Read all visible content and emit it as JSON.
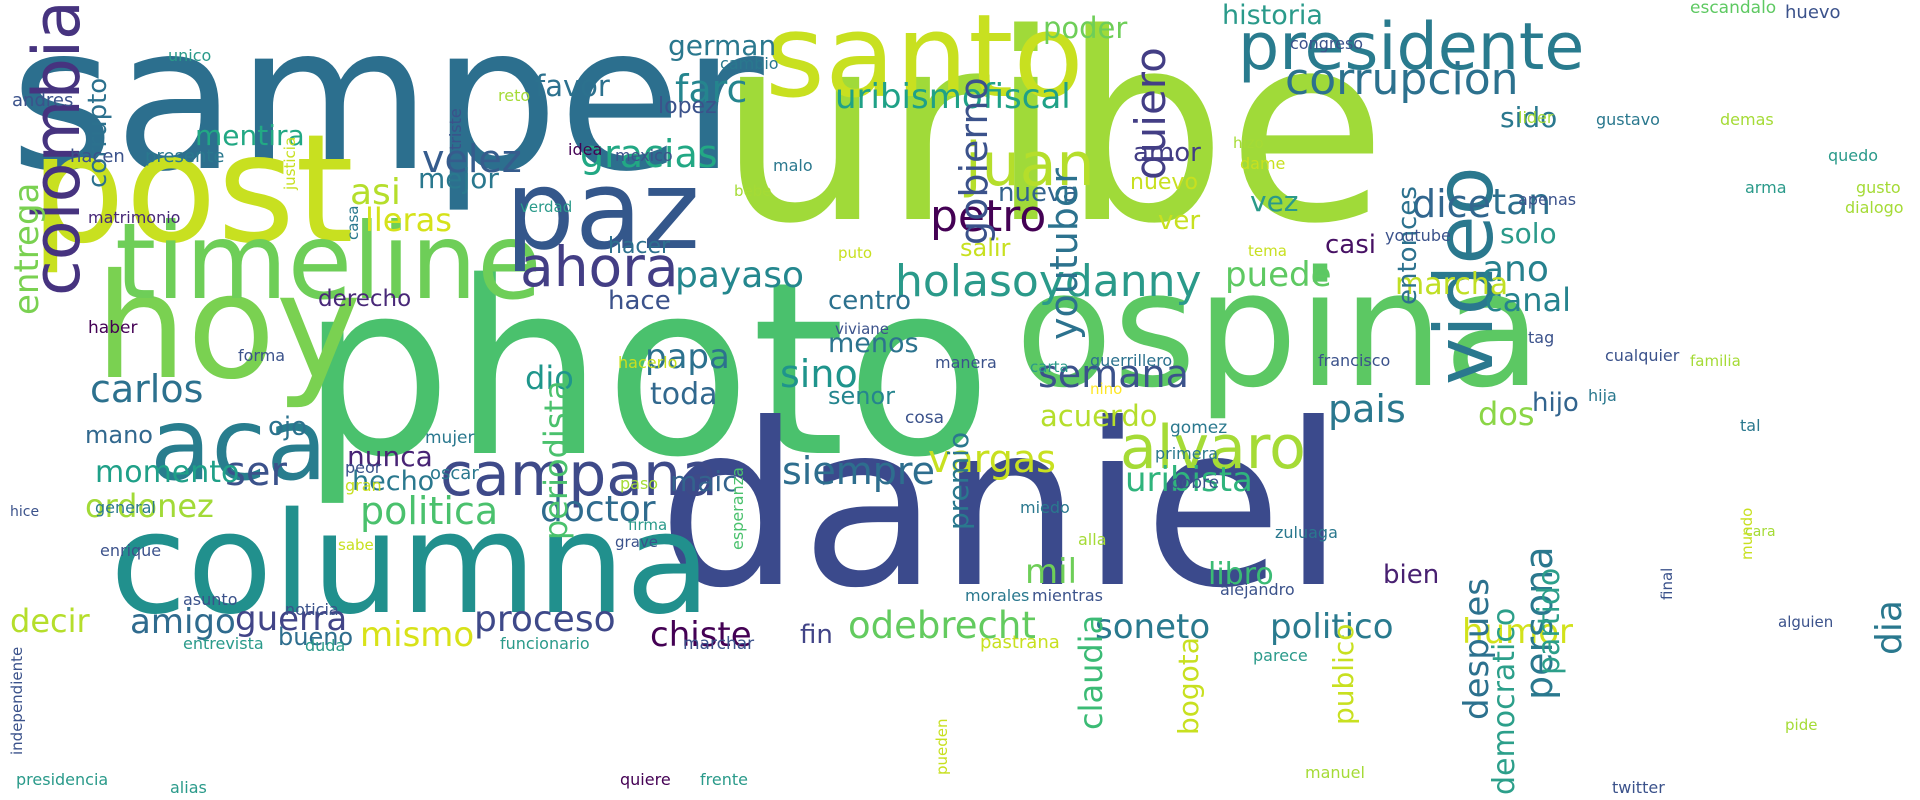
{
  "colors": {
    "background": "#ffffff",
    "palette": [
      "#440154",
      "#46327e",
      "#365c8d",
      "#277f8e",
      "#1fa187",
      "#4ac16d",
      "#a0da39",
      "#c8e020",
      "#fde725"
    ]
  },
  "words": [
    {
      "text": "uribe",
      "color": "#a0da39",
      "vertical": false
    },
    {
      "text": "photo",
      "color": "#4ac16d",
      "vertical": false
    },
    {
      "text": "samper",
      "color": "#2c6f8e",
      "vertical": false
    },
    {
      "text": "daniel",
      "color": "#3b4a8c",
      "vertical": false
    },
    {
      "text": "post",
      "color": "#c8e020",
      "vertical": false
    },
    {
      "text": "ospina",
      "color": "#5cc863",
      "vertical": false
    },
    {
      "text": "hoy",
      "color": "#7ad151",
      "vertical": false
    },
    {
      "text": "columna",
      "color": "#21908d",
      "vertical": false
    },
    {
      "text": "santo",
      "color": "#c8e020",
      "vertical": false
    },
    {
      "text": "timeline",
      "color": "#6ece58",
      "vertical": false
    },
    {
      "text": "paz",
      "color": "#34578b",
      "vertical": false
    },
    {
      "text": "presidente",
      "color": "#297b8e",
      "vertical": false
    },
    {
      "text": "aca",
      "color": "#287d8e",
      "vertical": false
    },
    {
      "text": "colombia",
      "color": "#46337f",
      "vertical": true
    },
    {
      "text": "video",
      "color": "#2a788e",
      "vertical": true
    },
    {
      "text": "campana",
      "color": "#3e4a89",
      "vertical": false
    },
    {
      "text": "alvaro",
      "color": "#a5db36",
      "vertical": false
    },
    {
      "text": "juan",
      "color": "#b5de2b",
      "vertical": false
    },
    {
      "text": "ahora",
      "color": "#433e85",
      "vertical": false
    },
    {
      "text": "holasoydanny",
      "color": "#2a9a8a",
      "vertical": false
    },
    {
      "text": "corrupcion",
      "color": "#2c718e",
      "vertical": false
    },
    {
      "text": "petro",
      "color": "#440154",
      "vertical": false
    },
    {
      "text": "uribismofiscal",
      "color": "#1fa187",
      "vertical": false
    },
    {
      "text": "carlos",
      "color": "#2c718e",
      "vertical": false
    },
    {
      "text": "gracias",
      "color": "#22a884",
      "vertical": false
    },
    {
      "text": "velez",
      "color": "#365c8d",
      "vertical": false
    },
    {
      "text": "farc",
      "color": "#25858e",
      "vertical": false
    },
    {
      "text": "siempre",
      "color": "#2e6e8e",
      "vertical": false
    },
    {
      "text": "vargas",
      "color": "#c8e020",
      "vertical": false
    },
    {
      "text": "semana",
      "color": "#3b528b",
      "vertical": false
    },
    {
      "text": "pais",
      "color": "#2a788e",
      "vertical": false
    },
    {
      "text": "dice",
      "color": "#31668e",
      "vertical": false
    },
    {
      "text": "tan",
      "color": "#2d708e",
      "vertical": false
    },
    {
      "text": "uribista",
      "color": "#2fb47c",
      "vertical": false
    },
    {
      "text": "politica",
      "color": "#4ac16d",
      "vertical": false
    },
    {
      "text": "doctor",
      "color": "#2f6b8e",
      "vertical": false
    },
    {
      "text": "ser",
      "color": "#3b528b",
      "vertical": false
    },
    {
      "text": "dio",
      "color": "#1f968b",
      "vertical": false
    },
    {
      "text": "sino",
      "color": "#1f948c",
      "vertical": false
    },
    {
      "text": "papa",
      "color": "#2c718e",
      "vertical": false
    },
    {
      "text": "payaso",
      "color": "#24878e",
      "vertical": false
    },
    {
      "text": "puede",
      "color": "#5ec962",
      "vertical": false
    },
    {
      "text": "ano",
      "color": "#26818e",
      "vertical": false
    },
    {
      "text": "canal",
      "color": "#25838e",
      "vertical": false
    },
    {
      "text": "odebrecht",
      "color": "#63cb5f",
      "vertical": false
    },
    {
      "text": "soneto",
      "color": "#29798e",
      "vertical": false
    },
    {
      "text": "politico",
      "color": "#297a8e",
      "vertical": false
    },
    {
      "text": "humor",
      "color": "#d2e21b",
      "vertical": false
    },
    {
      "text": "chiste",
      "color": "#440154",
      "vertical": false
    },
    {
      "text": "proceso",
      "color": "#3e4989",
      "vertical": false
    },
    {
      "text": "mismo",
      "color": "#d8e219",
      "vertical": false
    },
    {
      "text": "guerra",
      "color": "#414487",
      "vertical": false
    },
    {
      "text": "amigo",
      "color": "#2f6b8e",
      "vertical": false
    },
    {
      "text": "decir",
      "color": "#b5de2b",
      "vertical": false
    },
    {
      "text": "ordonez",
      "color": "#a2da37",
      "vertical": false
    },
    {
      "text": "momento",
      "color": "#1fa088",
      "vertical": false
    },
    {
      "text": "mano",
      "color": "#31688e",
      "vertical": false
    },
    {
      "text": "ojo",
      "color": "#2c728e",
      "vertical": false
    },
    {
      "text": "acuerdo",
      "color": "#b5de2b",
      "vertical": false
    },
    {
      "text": "dos",
      "color": "#8bd646",
      "vertical": false
    },
    {
      "text": "hijo",
      "color": "#32648e",
      "vertical": false
    },
    {
      "text": "mil",
      "color": "#6ece58",
      "vertical": false
    },
    {
      "text": "libro",
      "color": "#3bbb75",
      "vertical": false
    },
    {
      "text": "bien",
      "color": "#482071",
      "vertical": false
    },
    {
      "text": "nunca",
      "color": "#482475",
      "vertical": false
    },
    {
      "text": "hecho",
      "color": "#2a788e",
      "vertical": false
    },
    {
      "text": "maic",
      "color": "#33638d",
      "vertical": false
    },
    {
      "text": "fin",
      "color": "#414487",
      "vertical": false
    },
    {
      "text": "bueno",
      "color": "#2e6e8e",
      "vertical": false
    },
    {
      "text": "toda",
      "color": "#31688e",
      "vertical": false
    },
    {
      "text": "menos",
      "color": "#2c738e",
      "vertical": false
    },
    {
      "text": "senor",
      "color": "#25858e",
      "vertical": false
    },
    {
      "text": "centro",
      "color": "#2c718e",
      "vertical": false
    },
    {
      "text": "hace",
      "color": "#3b528b",
      "vertical": false
    },
    {
      "text": "derecho",
      "color": "#482878",
      "vertical": false
    },
    {
      "text": "asi",
      "color": "#b5de2b",
      "vertical": false
    },
    {
      "text": "lleras",
      "color": "#d5e21a",
      "vertical": false
    },
    {
      "text": "mejor",
      "color": "#2a788e",
      "vertical": false
    },
    {
      "text": "mentira",
      "color": "#22a884",
      "vertical": false
    },
    {
      "text": "favor",
      "color": "#2c718e",
      "vertical": false
    },
    {
      "text": "german",
      "color": "#2a788e",
      "vertical": false
    },
    {
      "text": "poder",
      "color": "#6ece58",
      "vertical": false
    },
    {
      "text": "historia",
      "color": "#2a9a8a",
      "vertical": false
    },
    {
      "text": "nueva",
      "color": "#33638d",
      "vertical": false
    },
    {
      "text": "amor",
      "color": "#433e85",
      "vertical": false
    },
    {
      "text": "nuevo",
      "color": "#c8e020",
      "vertical": false
    },
    {
      "text": "ver",
      "color": "#c8e020",
      "vertical": false
    },
    {
      "text": "casi",
      "color": "#471164",
      "vertical": false
    },
    {
      "text": "marcha",
      "color": "#c0df25",
      "vertical": false
    },
    {
      "text": "vez",
      "color": "#2a9a8a",
      "vertical": false
    },
    {
      "text": "sido",
      "color": "#2a788e",
      "vertical": false
    },
    {
      "text": "solo",
      "color": "#2a9a8a",
      "vertical": false
    },
    {
      "text": "salir",
      "color": "#c8e020",
      "vertical": false
    },
    {
      "text": "hacer",
      "color": "#2d708e",
      "vertical": false
    },
    {
      "text": "lopez",
      "color": "#3b528b",
      "vertical": false
    },
    {
      "text": "quiero",
      "color": "#433e85",
      "vertical": true
    },
    {
      "text": "gobierno",
      "color": "#3b528b",
      "vertical": true
    },
    {
      "text": "youtuber",
      "color": "#2c728e",
      "vertical": true
    },
    {
      "text": "periodista",
      "color": "#4ac16d",
      "vertical": true
    },
    {
      "text": "premio",
      "color": "#2a788e",
      "vertical": true
    },
    {
      "text": "entrega",
      "color": "#7ad151",
      "vertical": true
    },
    {
      "text": "corrupto",
      "color": "#2c718e",
      "vertical": true
    },
    {
      "text": "claudia",
      "color": "#3bbb75",
      "vertical": true
    },
    {
      "text": "bogota",
      "color": "#c8e020",
      "vertical": true
    },
    {
      "text": "publico",
      "color": "#c8e020",
      "vertical": true
    },
    {
      "text": "despues",
      "color": "#2c718e",
      "vertical": true
    },
    {
      "text": "persona",
      "color": "#2a788e",
      "vertical": true
    },
    {
      "text": "partido",
      "color": "#2c9f8a",
      "vertical": true
    },
    {
      "text": "entonces",
      "color": "#2c718e",
      "vertical": true
    },
    {
      "text": "dia",
      "color": "#2a788e",
      "vertical": true
    },
    {
      "text": "democratico",
      "color": "#2c9f8a",
      "vertical": true
    },
    {
      "text": "unico",
      "color": "#2a9a8a",
      "vertical": false
    },
    {
      "text": "cambio",
      "color": "#2a788e",
      "vertical": false
    },
    {
      "text": "reto",
      "color": "#a5db36",
      "vertical": false
    },
    {
      "text": "andres",
      "color": "#3b528b",
      "vertical": false
    },
    {
      "text": "hacen",
      "color": "#3b528b",
      "vertical": false
    },
    {
      "text": "presente",
      "color": "#2a788e",
      "vertical": false
    },
    {
      "text": "idea",
      "color": "#440154",
      "vertical": false
    },
    {
      "text": "mexico",
      "color": "#3b528b",
      "vertical": false
    },
    {
      "text": "congreso",
      "color": "#3b528b",
      "vertical": false
    },
    {
      "text": "escandalo",
      "color": "#5ec962",
      "vertical": false
    },
    {
      "text": "huevo",
      "color": "#3b528b",
      "vertical": false
    },
    {
      "text": "gustavo",
      "color": "#2a788e",
      "vertical": false
    },
    {
      "text": "demas",
      "color": "#a5db36",
      "vertical": false
    },
    {
      "text": "lider",
      "color": "#a5db36",
      "vertical": false
    },
    {
      "text": "quedo",
      "color": "#2a9a8a",
      "vertical": false
    },
    {
      "text": "hizo",
      "color": "#a5db36",
      "vertical": false
    },
    {
      "text": "dame",
      "color": "#c8e020",
      "vertical": false
    },
    {
      "text": "gusto",
      "color": "#a5db36",
      "vertical": false
    },
    {
      "text": "dialogo",
      "color": "#a5db36",
      "vertical": false
    },
    {
      "text": "arma",
      "color": "#2a9a8a",
      "vertical": false
    },
    {
      "text": "apenas",
      "color": "#3b528b",
      "vertical": false
    },
    {
      "text": "bebe",
      "color": "#a5db36",
      "vertical": false
    },
    {
      "text": "malo",
      "color": "#2a788e",
      "vertical": false
    },
    {
      "text": "verdad",
      "color": "#2a9a8a",
      "vertical": false
    },
    {
      "text": "matrimonio",
      "color": "#482878",
      "vertical": false
    },
    {
      "text": "puto",
      "color": "#c8e020",
      "vertical": false
    },
    {
      "text": "tema",
      "color": "#c8e020",
      "vertical": false
    },
    {
      "text": "youtube",
      "color": "#3b528b",
      "vertical": false
    },
    {
      "text": "haber",
      "color": "#440154",
      "vertical": false
    },
    {
      "text": "viviane",
      "color": "#3b528b",
      "vertical": false
    },
    {
      "text": "forma",
      "color": "#3b528b",
      "vertical": false
    },
    {
      "text": "carta",
      "color": "#2a9a8a",
      "vertical": false
    },
    {
      "text": "tag",
      "color": "#3b528b",
      "vertical": false
    },
    {
      "text": "cualquier",
      "color": "#3b528b",
      "vertical": false
    },
    {
      "text": "familia",
      "color": "#a5db36",
      "vertical": false
    },
    {
      "text": "guerrillero",
      "color": "#2c718e",
      "vertical": false
    },
    {
      "text": "francisco",
      "color": "#3b528b",
      "vertical": false
    },
    {
      "text": "hacerlo",
      "color": "#c8e020",
      "vertical": false
    },
    {
      "text": "manera",
      "color": "#3b528b",
      "vertical": false
    },
    {
      "text": "nino",
      "color": "#fde725",
      "vertical": false
    },
    {
      "text": "hija",
      "color": "#2a788e",
      "vertical": false
    },
    {
      "text": "cosa",
      "color": "#3b528b",
      "vertical": false
    },
    {
      "text": "tal",
      "color": "#2a788e",
      "vertical": false
    },
    {
      "text": "mujer",
      "color": "#2a788e",
      "vertical": false
    },
    {
      "text": "oscar",
      "color": "#2a788e",
      "vertical": false
    },
    {
      "text": "gomez",
      "color": "#2a788e",
      "vertical": false
    },
    {
      "text": "primera",
      "color": "#2a788e",
      "vertical": false
    },
    {
      "text": "pobre",
      "color": "#3b528b",
      "vertical": false
    },
    {
      "text": "peor",
      "color": "#3b528b",
      "vertical": false
    },
    {
      "text": "gran",
      "color": "#c8e020",
      "vertical": false
    },
    {
      "text": "general",
      "color": "#2a788e",
      "vertical": false
    },
    {
      "text": "paso",
      "color": "#a5db36",
      "vertical": false
    },
    {
      "text": "hice",
      "color": "#3b528b",
      "vertical": false
    },
    {
      "text": "miedo",
      "color": "#2a788e",
      "vertical": false
    },
    {
      "text": "alla",
      "color": "#a5db36",
      "vertical": false
    },
    {
      "text": "zuluaga",
      "color": "#2a788e",
      "vertical": false
    },
    {
      "text": "cara",
      "color": "#a5db36",
      "vertical": false
    },
    {
      "text": "enrique",
      "color": "#3b528b",
      "vertical": false
    },
    {
      "text": "sabe",
      "color": "#c8e020",
      "vertical": false
    },
    {
      "text": "firma",
      "color": "#2a9a8a",
      "vertical": false
    },
    {
      "text": "grave",
      "color": "#3b528b",
      "vertical": false
    },
    {
      "text": "asunto",
      "color": "#3b528b",
      "vertical": false
    },
    {
      "text": "noticia",
      "color": "#3b528b",
      "vertical": false
    },
    {
      "text": "morales",
      "color": "#2a788e",
      "vertical": false
    },
    {
      "text": "mientras",
      "color": "#3b528b",
      "vertical": false
    },
    {
      "text": "alejandro",
      "color": "#3b528b",
      "vertical": false
    },
    {
      "text": "entrevista",
      "color": "#2a9a8a",
      "vertical": false
    },
    {
      "text": "duda",
      "color": "#2a9a8a",
      "vertical": false
    },
    {
      "text": "funcionario",
      "color": "#2a9a8a",
      "vertical": false
    },
    {
      "text": "marchar",
      "color": "#3b528b",
      "vertical": false
    },
    {
      "text": "pastrana",
      "color": "#c8e020",
      "vertical": false
    },
    {
      "text": "parece",
      "color": "#2a9a8a",
      "vertical": false
    },
    {
      "text": "alguien",
      "color": "#3b528b",
      "vertical": false
    },
    {
      "text": "pide",
      "color": "#a5db36",
      "vertical": false
    },
    {
      "text": "presidencia",
      "color": "#2a9a8a",
      "vertical": false
    },
    {
      "text": "alias",
      "color": "#2a9a8a",
      "vertical": false
    },
    {
      "text": "quiere",
      "color": "#440154",
      "vertical": false
    },
    {
      "text": "frente",
      "color": "#2a9a8a",
      "vertical": false
    },
    {
      "text": "manuel",
      "color": "#a5db36",
      "vertical": false
    },
    {
      "text": "twitter",
      "color": "#3b528b",
      "vertical": false
    },
    {
      "text": "justicia",
      "color": "#c8e020",
      "vertical": true
    },
    {
      "text": "triste",
      "color": "#3b528b",
      "vertical": true
    },
    {
      "text": "casa",
      "color": "#2a788e",
      "vertical": true
    },
    {
      "text": "independiente",
      "color": "#3b528b",
      "vertical": true
    },
    {
      "text": "esperanza",
      "color": "#4ac16d",
      "vertical": true
    },
    {
      "text": "pueden",
      "color": "#c8e020",
      "vertical": true
    },
    {
      "text": "final",
      "color": "#3b528b",
      "vertical": true
    },
    {
      "text": "mundo",
      "color": "#c8e020",
      "vertical": true
    }
  ]
}
